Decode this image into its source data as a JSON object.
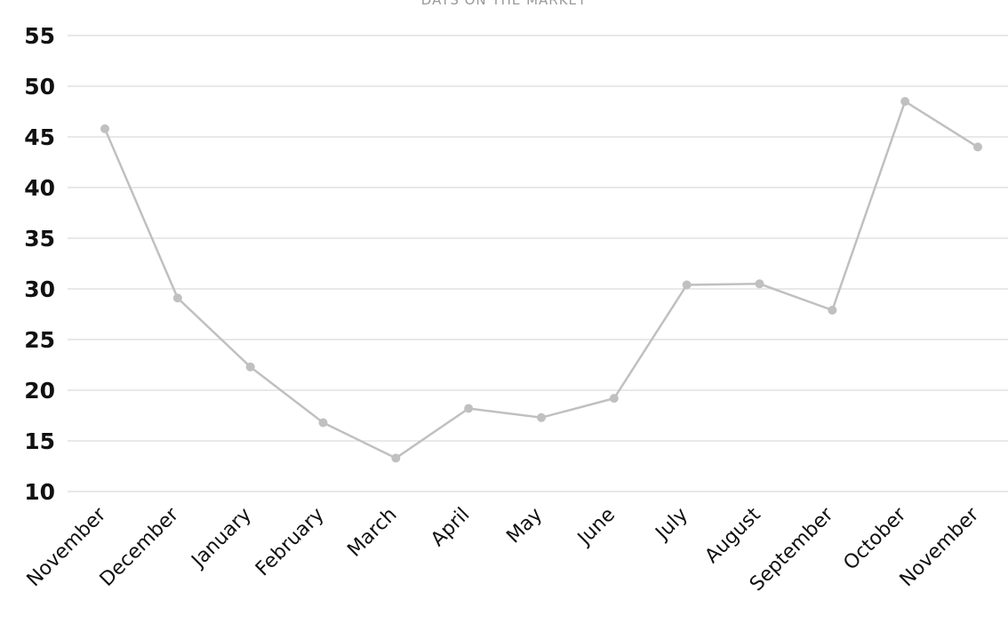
{
  "chart_data": {
    "type": "line",
    "title": "DAYS ON THE MARKET",
    "xlabel": "",
    "ylabel": "",
    "categories": [
      "November",
      "December",
      "January",
      "February",
      "March",
      "April",
      "May",
      "June",
      "July",
      "August",
      "September",
      "October",
      "November"
    ],
    "series": [
      {
        "values": [
          45.8,
          29.1,
          22.3,
          16.8,
          13.3,
          18.2,
          17.3,
          19.2,
          30.4,
          30.5,
          27.9,
          48.5,
          44.0
        ]
      }
    ],
    "yticks": [
      10,
      15,
      20,
      25,
      30,
      35,
      40,
      45,
      50,
      55
    ],
    "ylim": [
      10,
      55
    ],
    "grid": true,
    "legend": "none",
    "colors": {
      "line": "#c0c0c0",
      "grid": "#e2e2e2",
      "text": "#111111"
    }
  }
}
